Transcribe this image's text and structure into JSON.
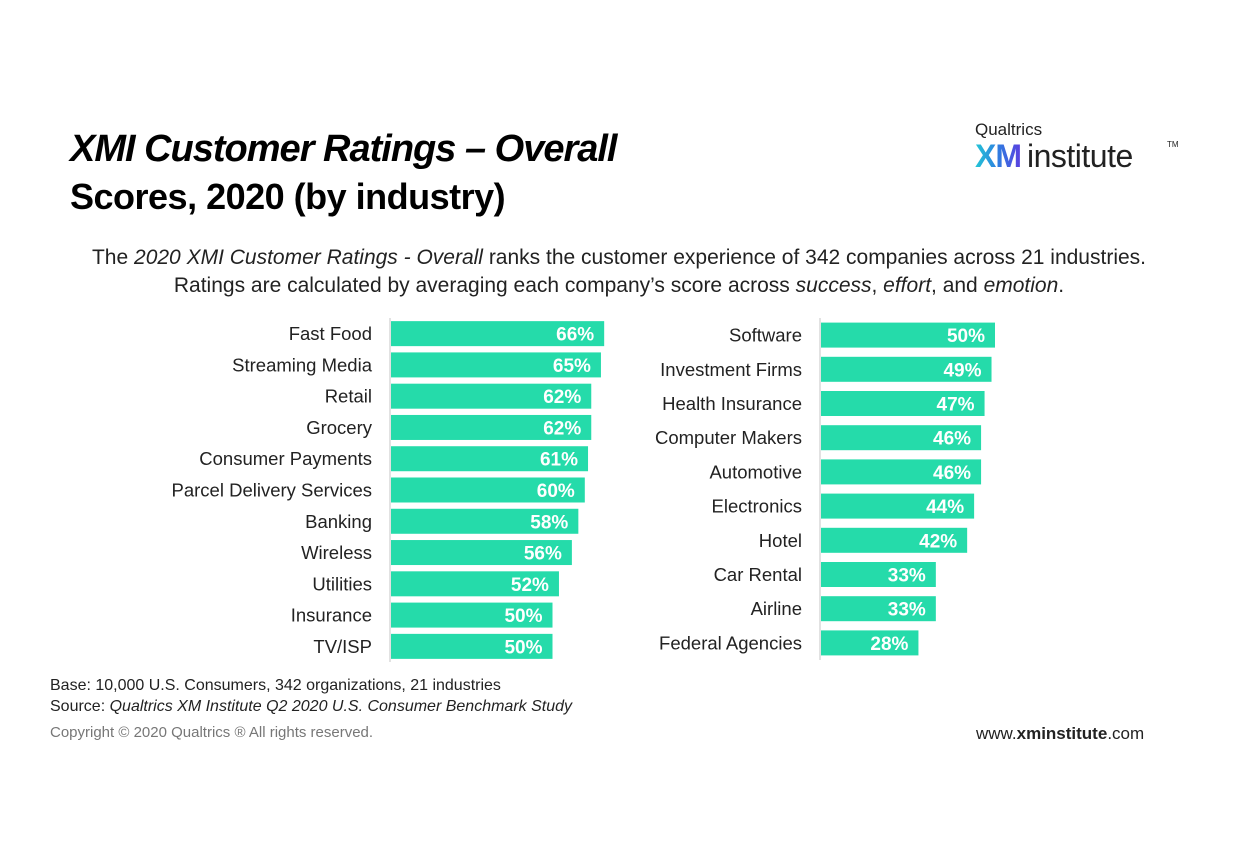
{
  "header": {
    "title_line1": "XMI Customer Ratings – Overall",
    "title_line2": "Scores, 2020 (by industry)"
  },
  "logo": {
    "small": "Qualtrics",
    "xm": "XM",
    "institute": "institute",
    "tm": "TM"
  },
  "intro": {
    "part1": "The ",
    "italic1": "2020 XMI Customer Ratings - Overall",
    "part2": " ranks the customer experience of 342 companies across 21 industries. Ratings are calculated by averaging each company’s score across ",
    "italic2": "success",
    "part3": ", ",
    "italic3": "effort",
    "part4": ", and ",
    "italic4": "emotion",
    "part5": "."
  },
  "chart_data": [
    {
      "type": "bar",
      "orientation": "horizontal",
      "title": "",
      "xlabel": "",
      "ylabel": "",
      "unit": "%",
      "xlim": [
        0,
        100
      ],
      "grid": false,
      "bar_color": "#25dbaa",
      "categories": [
        "Fast Food",
        "Streaming Media",
        "Retail",
        "Grocery",
        "Consumer Payments",
        "Parcel Delivery Services",
        "Banking",
        "Wireless",
        "Utilities",
        "Insurance",
        "TV/ISP"
      ],
      "values": [
        66,
        65,
        62,
        62,
        61,
        60,
        58,
        56,
        52,
        50,
        50
      ],
      "labels": [
        "66%",
        "65%",
        "62%",
        "62%",
        "61%",
        "60%",
        "58%",
        "56%",
        "52%",
        "50%",
        "50%"
      ]
    },
    {
      "type": "bar",
      "orientation": "horizontal",
      "title": "",
      "xlabel": "",
      "ylabel": "",
      "unit": "%",
      "xlim": [
        0,
        100
      ],
      "grid": false,
      "bar_color": "#25dbaa",
      "categories": [
        "Software",
        "Investment Firms",
        "Health Insurance",
        "Computer Makers",
        "Automotive",
        "Electronics",
        "Hotel",
        "Car Rental",
        "Airline",
        "Federal Agencies"
      ],
      "values": [
        50,
        49,
        47,
        46,
        46,
        44,
        42,
        33,
        33,
        28
      ],
      "labels": [
        "50%",
        "49%",
        "47%",
        "46%",
        "46%",
        "44%",
        "42%",
        "33%",
        "33%",
        "28%"
      ]
    }
  ],
  "footer": {
    "base": "Base: 10,000 U.S. Consumers, 342 organizations, 21 industries",
    "source_prefix": "Source: ",
    "source_italic": "Qualtrics XM Institute Q2 2020 U.S. Consumer Benchmark Study",
    "copyright": "Copyright © 2020 Qualtrics ® All rights reserved.",
    "url_pre": "www.",
    "url_bold": "xminstitute",
    "url_post": ".com"
  }
}
